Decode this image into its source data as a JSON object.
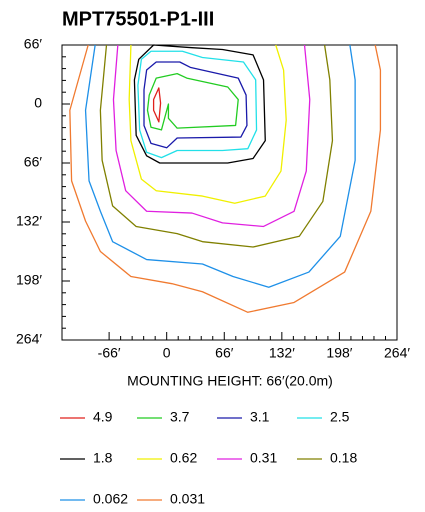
{
  "chart_data": {
    "type": "contour",
    "title": "MPT75501-P1-III",
    "xlabel": "MOUNTING HEIGHT: 66′(20.0m)",
    "xlim": [
      -120,
      264
    ],
    "ylim": [
      -264,
      66
    ],
    "xticks": [
      {
        "value": -66,
        "label": "-66′"
      },
      0,
      {
        "value": 66,
        "label": "66′"
      },
      {
        "value": 132,
        "label": "132′"
      },
      {
        "value": 198,
        "label": "198′"
      },
      {
        "value": 264,
        "label": "264′"
      }
    ],
    "yticks": [
      {
        "value": 66,
        "label": "66′"
      },
      0,
      {
        "value": -66,
        "label": "66′"
      },
      {
        "value": -132,
        "label": "132′"
      },
      {
        "value": -198,
        "label": "198′"
      },
      {
        "value": -264,
        "label": "264′"
      }
    ],
    "series": [
      {
        "name": "4.9",
        "color": "#e0201c",
        "closed": true,
        "x": [
          -15,
          -9,
          -7,
          -9,
          -15
        ],
        "y": [
          5,
          18,
          1,
          -20,
          -7
        ]
      },
      {
        "name": "3.7",
        "color": "#22cc22",
        "closed": true,
        "x": [
          -20,
          -12,
          12,
          23,
          70,
          82,
          79,
          12,
          2,
          2,
          -6,
          -18,
          -22
        ],
        "y": [
          10,
          29,
          34,
          29,
          19,
          5,
          -24,
          -27,
          -16,
          0,
          -29,
          -26,
          -7
        ]
      },
      {
        "name": "3.1",
        "color": "#1a1aaa",
        "closed": true,
        "x": [
          -23,
          -12,
          15,
          27,
          82,
          91,
          92,
          85,
          12,
          0,
          -18,
          -26,
          -26
        ],
        "y": [
          38,
          47,
          47,
          41,
          29,
          10,
          -24,
          -37,
          -38,
          -49,
          -44,
          -24,
          16
        ]
      },
      {
        "name": "2.5",
        "color": "#22e0e8",
        "closed": true,
        "x": [
          -29,
          -18,
          18,
          41,
          88,
          102,
          103,
          93,
          64,
          12,
          -6,
          -23,
          -31,
          -33
        ],
        "y": [
          50,
          59,
          59,
          52,
          47,
          27,
          -29,
          -50,
          -52,
          -52,
          -60,
          -54,
          -29,
          21
        ]
      },
      {
        "name": "1.8",
        "color": "#000000",
        "closed": true,
        "x": [
          -32,
          -15,
          29,
          64,
          99,
          111,
          113,
          99,
          70,
          6,
          -8,
          -23,
          -35,
          -37
        ],
        "y": [
          50,
          66,
          63,
          61,
          55,
          27,
          -41,
          -61,
          -66,
          -66,
          -66,
          -58,
          -35,
          27
        ]
      },
      {
        "name": "0.62",
        "color": "#f0f000",
        "closed": false,
        "x": [
          -41,
          -43,
          -41,
          -29,
          -12,
          41,
          78,
          113,
          131,
          137,
          134,
          125
        ],
        "y": [
          66,
          5,
          -41,
          -84,
          -97,
          -103,
          -111,
          -103,
          -75,
          -18,
          38,
          66
        ]
      },
      {
        "name": "0.31",
        "color": "#e020e0",
        "closed": false,
        "x": [
          -56,
          -61,
          -58,
          -47,
          -23,
          29,
          64,
          111,
          146,
          160,
          164,
          158
        ],
        "y": [
          66,
          5,
          -52,
          -97,
          -120,
          -122,
          -133,
          -137,
          -120,
          -75,
          5,
          66
        ]
      },
      {
        "name": "0.18",
        "color": "#808000",
        "closed": false,
        "x": [
          -69,
          -76,
          -74,
          -62,
          -35,
          12,
          41,
          99,
          152,
          179,
          190,
          187,
          181
        ],
        "y": [
          66,
          -7,
          -63,
          -114,
          -137,
          -145,
          -154,
          -160,
          -148,
          -109,
          -41,
          27,
          66
        ]
      },
      {
        "name": "0.062",
        "color": "#1e90e8",
        "closed": false,
        "x": [
          -82,
          -93,
          -89,
          -76,
          -62,
          -23,
          41,
          76,
          117,
          163,
          199,
          216,
          216,
          210
        ],
        "y": [
          66,
          -7,
          -86,
          -120,
          -154,
          -174,
          -179,
          -193,
          -205,
          -188,
          -148,
          -63,
          27,
          66
        ]
      },
      {
        "name": "0.031",
        "color": "#f07a30",
        "closed": false,
        "x": [
          -90,
          -111,
          -109,
          -93,
          -76,
          -41,
          6,
          41,
          93,
          146,
          204,
          234,
          245,
          245,
          239
        ],
        "y": [
          66,
          -7,
          -86,
          -131,
          -165,
          -193,
          -201,
          -210,
          -233,
          -222,
          -188,
          -120,
          -29,
          38,
          66
        ]
      }
    ]
  }
}
